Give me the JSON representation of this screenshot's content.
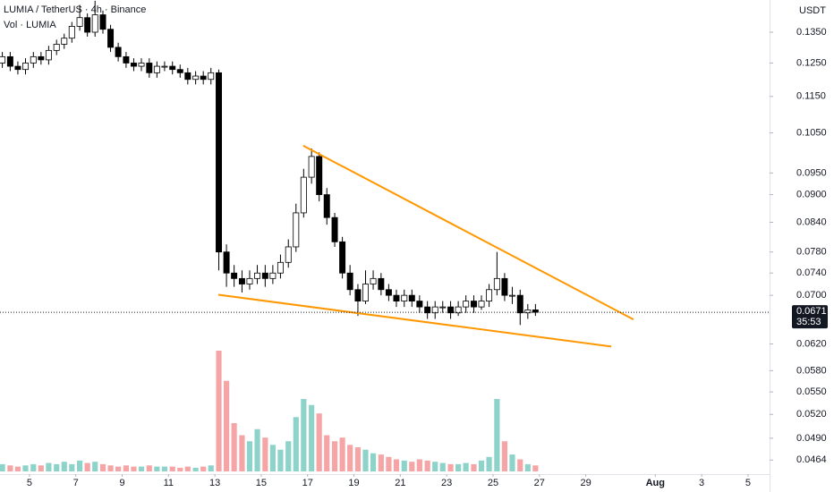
{
  "chart_data": {
    "type": "candlestick",
    "title": "LUMIA / TetherUS · 4h · Binance",
    "volume_label": "Vol · LUMIA",
    "currency": "USDT",
    "x": [
      3.83,
      4.17,
      4.5,
      4.83,
      5.17,
      5.5,
      5.83,
      6.17,
      6.5,
      6.83,
      7.17,
      7.5,
      7.83,
      8.17,
      8.5,
      8.83,
      9.17,
      9.5,
      9.83,
      10.17,
      10.5,
      10.83,
      11.17,
      11.5,
      11.83,
      12.17,
      12.5,
      12.83,
      13.17,
      13.5,
      13.83,
      14.17,
      14.5,
      14.83,
      15.17,
      15.5,
      15.83,
      16.17,
      16.5,
      16.83,
      17.17,
      17.5,
      17.83,
      18.17,
      18.5,
      18.83,
      19.17,
      19.5,
      19.83,
      20.17,
      20.5,
      20.83,
      21.17,
      21.5,
      21.83,
      22.17,
      22.5,
      22.83,
      23.17,
      23.5,
      23.83,
      24.17,
      24.5,
      24.83,
      25.17,
      25.5,
      25.83,
      26.17,
      26.5,
      26.83
    ],
    "open": [
      0.125,
      0.127,
      0.124,
      0.123,
      0.125,
      0.127,
      0.126,
      0.129,
      0.131,
      0.133,
      0.137,
      0.14,
      0.135,
      0.141,
      0.136,
      0.13,
      0.127,
      0.125,
      0.124,
      0.125,
      0.122,
      0.124,
      0.124,
      0.123,
      0.122,
      0.12,
      0.121,
      0.12,
      0.122,
      0.078,
      0.074,
      0.073,
      0.072,
      0.073,
      0.074,
      0.073,
      0.074,
      0.076,
      0.079,
      0.086,
      0.094,
      0.099,
      0.09,
      0.085,
      0.08,
      0.074,
      0.071,
      0.069,
      0.072,
      0.073,
      0.071,
      0.07,
      0.069,
      0.07,
      0.069,
      0.068,
      0.067,
      0.068,
      0.068,
      0.067,
      0.068,
      0.069,
      0.068,
      0.069,
      0.071,
      0.073,
      0.07,
      0.07,
      0.067,
      0.0675
    ],
    "high": [
      0.1285,
      0.1285,
      0.1255,
      0.1265,
      0.1285,
      0.1285,
      0.1305,
      0.1325,
      0.1345,
      0.1385,
      0.1445,
      0.1415,
      0.146,
      0.1425,
      0.1375,
      0.1315,
      0.1285,
      0.1265,
      0.1265,
      0.1265,
      0.1255,
      0.1255,
      0.1255,
      0.1245,
      0.1235,
      0.1225,
      0.1225,
      0.1235,
      0.123,
      0.0795,
      0.0755,
      0.0745,
      0.0745,
      0.0755,
      0.0755,
      0.0755,
      0.0775,
      0.0805,
      0.088,
      0.096,
      0.101,
      0.1,
      0.0915,
      0.086,
      0.081,
      0.0755,
      0.072,
      0.0745,
      0.0745,
      0.074,
      0.072,
      0.071,
      0.071,
      0.071,
      0.07,
      0.069,
      0.069,
      0.069,
      0.069,
      0.069,
      0.07,
      0.07,
      0.07,
      0.072,
      0.078,
      0.074,
      0.0715,
      0.071,
      0.0685,
      0.0685
    ],
    "low": [
      0.1235,
      0.1225,
      0.1215,
      0.1215,
      0.1235,
      0.1245,
      0.1245,
      0.1275,
      0.1295,
      0.1315,
      0.1355,
      0.1335,
      0.1335,
      0.1345,
      0.1285,
      0.1255,
      0.1235,
      0.1225,
      0.1225,
      0.1205,
      0.1205,
      0.1225,
      0.1215,
      0.1205,
      0.1185,
      0.1185,
      0.1185,
      0.1185,
      0.0745,
      0.0715,
      0.0715,
      0.0705,
      0.071,
      0.072,
      0.0715,
      0.072,
      0.073,
      0.075,
      0.078,
      0.085,
      0.0925,
      0.0885,
      0.0835,
      0.079,
      0.073,
      0.07,
      0.0665,
      0.0685,
      0.071,
      0.07,
      0.069,
      0.068,
      0.068,
      0.068,
      0.067,
      0.066,
      0.066,
      0.067,
      0.066,
      0.0665,
      0.067,
      0.067,
      0.0675,
      0.068,
      0.07,
      0.069,
      0.0685,
      0.065,
      0.066,
      0.0665
    ],
    "close": [
      0.127,
      0.124,
      0.123,
      0.125,
      0.127,
      0.126,
      0.129,
      0.131,
      0.133,
      0.137,
      0.14,
      0.135,
      0.141,
      0.136,
      0.13,
      0.127,
      0.125,
      0.124,
      0.125,
      0.122,
      0.124,
      0.124,
      0.123,
      0.122,
      0.12,
      0.121,
      0.12,
      0.122,
      0.078,
      0.074,
      0.073,
      0.072,
      0.073,
      0.074,
      0.073,
      0.074,
      0.076,
      0.079,
      0.086,
      0.094,
      0.099,
      0.09,
      0.085,
      0.08,
      0.074,
      0.071,
      0.069,
      0.072,
      0.073,
      0.071,
      0.07,
      0.069,
      0.07,
      0.069,
      0.068,
      0.067,
      0.068,
      0.068,
      0.067,
      0.068,
      0.069,
      0.068,
      0.069,
      0.071,
      0.073,
      0.07,
      0.07,
      0.067,
      0.0675,
      0.0671
    ],
    "volume": [
      6,
      5,
      4,
      5,
      6,
      5,
      7,
      6,
      8,
      6,
      9,
      7,
      8,
      6,
      5,
      4,
      5,
      4,
      4,
      5,
      4,
      4,
      4,
      3,
      4,
      3,
      4,
      5,
      100,
      75,
      40,
      30,
      25,
      35,
      28,
      22,
      18,
      25,
      45,
      60,
      55,
      48,
      30,
      25,
      28,
      22,
      20,
      18,
      15,
      14,
      12,
      10,
      9,
      8,
      10,
      9,
      8,
      7,
      6,
      6,
      7,
      6,
      9,
      12,
      60,
      25,
      14,
      10,
      6,
      5
    ],
    "xlim": [
      3.73,
      36.93
    ],
    "ylim": [
      0.0448,
      0.1463
    ],
    "log_y": true,
    "yticks": [
      {
        "value": 0.135,
        "label": "0.1350"
      },
      {
        "value": 0.125,
        "label": "0.1250"
      },
      {
        "value": 0.115,
        "label": "0.1150"
      },
      {
        "value": 0.105,
        "label": "0.1050"
      },
      {
        "value": 0.095,
        "label": "0.0950"
      },
      {
        "value": 0.09,
        "label": "0.0900"
      },
      {
        "value": 0.084,
        "label": "0.0840"
      },
      {
        "value": 0.078,
        "label": "0.0780"
      },
      {
        "value": 0.074,
        "label": "0.0740"
      },
      {
        "value": 0.07,
        "label": "0.0700"
      },
      {
        "value": 0.062,
        "label": "0.0620"
      },
      {
        "value": 0.058,
        "label": "0.0580"
      },
      {
        "value": 0.055,
        "label": "0.0550"
      },
      {
        "value": 0.052,
        "label": "0.0520"
      },
      {
        "value": 0.049,
        "label": "0.0490"
      },
      {
        "value": 0.0464,
        "label": "0.0464"
      }
    ],
    "xticks": [
      5,
      7,
      9,
      11,
      13,
      15,
      17,
      19,
      21,
      23,
      25,
      27,
      29,
      {
        "value": 32,
        "label": "Aug"
      },
      {
        "value": 34,
        "label": "3"
      },
      {
        "value": 36,
        "label": "5"
      }
    ],
    "last_price": 0.0671,
    "countdown": "35:53",
    "trendlines": [
      {
        "x": [
          16.81,
          31.06
        ],
        "y": [
          0.1017,
          0.0659
        ]
      },
      {
        "x": [
          13.15,
          30.1
        ],
        "y": [
          0.0701,
          0.0616
        ]
      }
    ],
    "trendline_color": "#ff9800",
    "up_color": "#ffffff",
    "down_color": "#000000",
    "volume_up_color": "#8dd3c9",
    "volume_down_color": "#f5a5a5"
  }
}
